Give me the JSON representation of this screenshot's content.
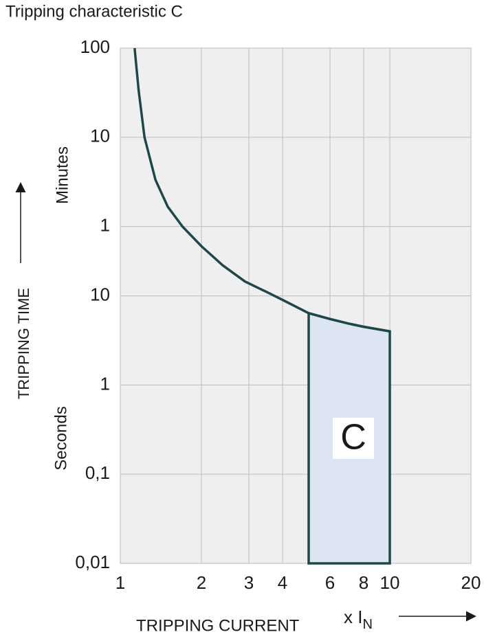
{
  "chart_data": {
    "type": "line",
    "title": "Tripping characteristic C",
    "x_label": "TRIPPING CURRENT",
    "x_unit": {
      "text": "x I",
      "sub": "N"
    },
    "y_label": "TRIPPING TIME",
    "annotations": {
      "minutes": "Minutes",
      "seconds": "Seconds"
    },
    "x_log": true,
    "y_log": true,
    "grid": true,
    "xlim": [
      1,
      20
    ],
    "xticks": [
      1,
      2,
      3,
      4,
      6,
      8,
      10,
      20
    ],
    "ylim": [
      0.01,
      6000
    ],
    "yticks": [
      {
        "value": 6000,
        "label": "100"
      },
      {
        "value": 600,
        "label": "10"
      },
      {
        "value": 60,
        "label": "1"
      },
      10,
      1,
      {
        "value": 0.1,
        "label": "0,1"
      },
      {
        "value": 0.01,
        "label": "0,01"
      }
    ],
    "series": [
      {
        "color": "#1d4848",
        "x": [
          1.13,
          1.17,
          1.23,
          1.35,
          1.5,
          1.7,
          2.0,
          2.4,
          2.9,
          3.5,
          4.0,
          5,
          6,
          7,
          8,
          10
        ],
        "values": [
          6000,
          2000,
          600,
          200,
          100,
          60,
          36,
          22,
          14.5,
          11,
          9,
          6.4,
          5.5,
          4.9,
          4.5,
          4.0
        ]
      }
    ],
    "region": {
      "label": "C",
      "x_from": 5,
      "x_to": 10,
      "color": "#dde5f2"
    }
  }
}
